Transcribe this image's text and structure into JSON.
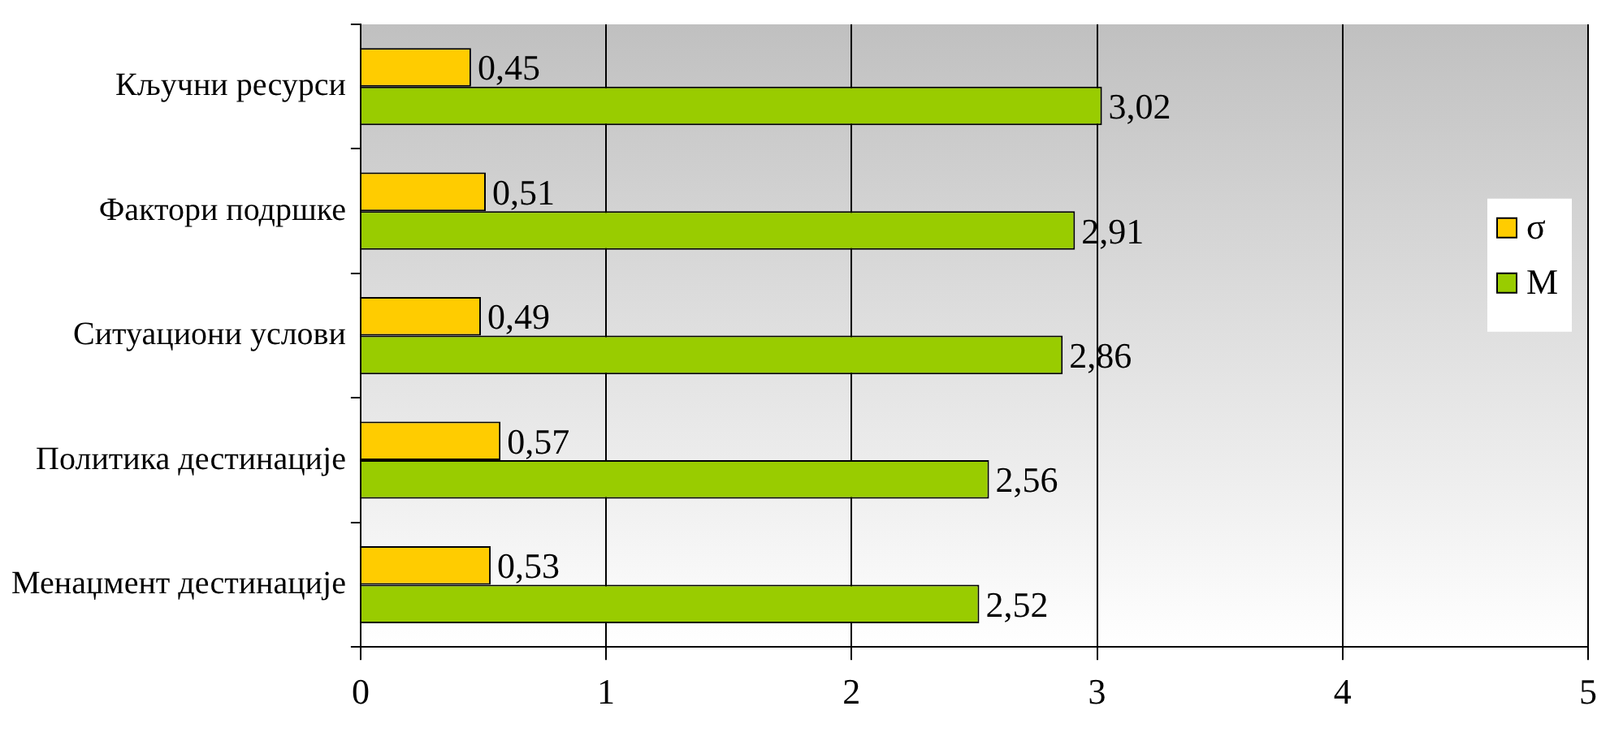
{
  "chart_data": {
    "type": "bar",
    "orientation": "horizontal",
    "categories": [
      "Кључни ресурси",
      "Фактори подршке",
      "Ситуациони услови",
      "Политика дестинације",
      "Менаџмент дестинације"
    ],
    "series": [
      {
        "name": "σ",
        "color": "#ffcc00",
        "values": [
          0.45,
          0.51,
          0.49,
          0.57,
          0.53
        ],
        "value_labels": [
          "0,45",
          "0,51",
          "0,49",
          "0,57",
          "0,53"
        ]
      },
      {
        "name": "M",
        "color": "#99cc00",
        "values": [
          3.02,
          2.91,
          2.86,
          2.56,
          2.52
        ],
        "value_labels": [
          "3,02",
          "2,91",
          "2,86",
          "2,56",
          "2,52"
        ]
      }
    ],
    "xlim": [
      0,
      5
    ],
    "xticks": [
      0,
      1,
      2,
      3,
      4,
      5
    ],
    "grid": "x",
    "legend": "right"
  }
}
